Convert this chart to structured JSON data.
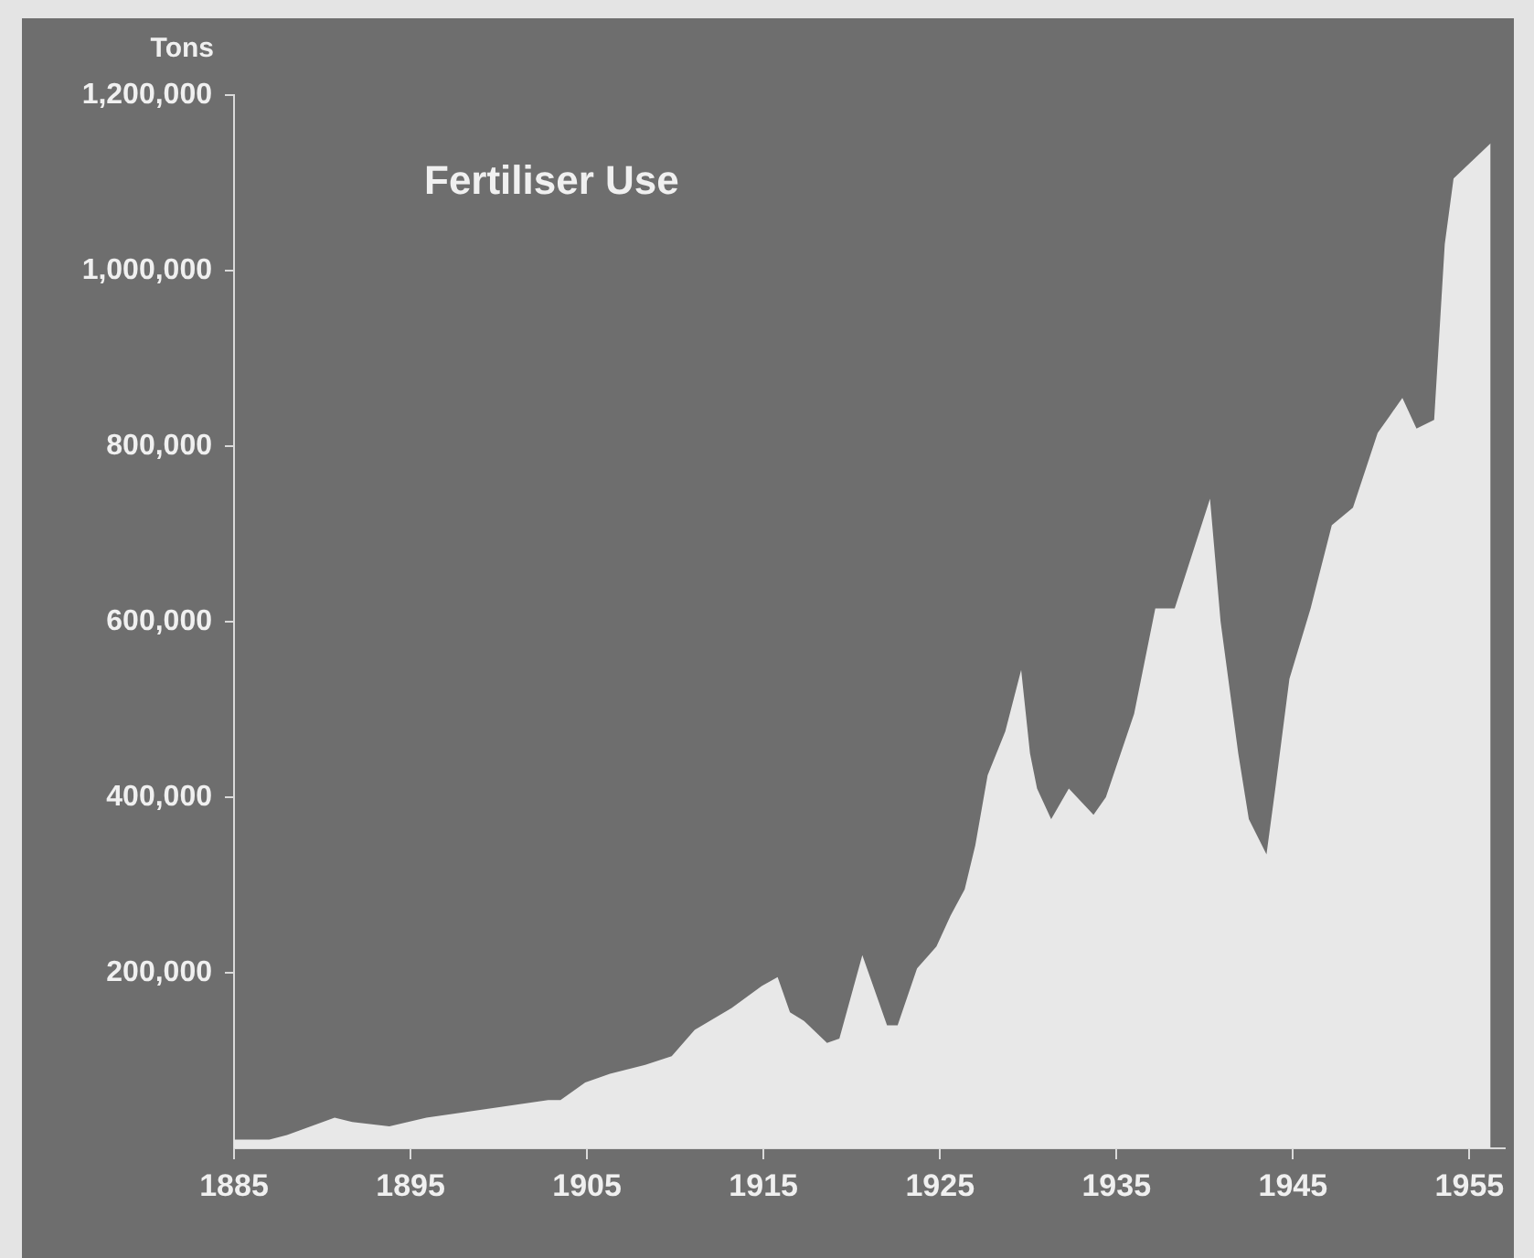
{
  "chart_data": {
    "type": "area",
    "title": "Fertiliser Use",
    "ylabel": "Tons",
    "x": [
      1885,
      1887,
      1888,
      1890.7,
      1891.7,
      1893.8,
      1895.9,
      1899.4,
      1902.8,
      1903.5,
      1904.9,
      1906.3,
      1908.3,
      1909.8,
      1911.1,
      1913.2,
      1914.9,
      1915.8,
      1916.5,
      1917.3,
      1918.6,
      1919.3,
      1920.6,
      1922,
      1922.6,
      1923.7,
      1924.8,
      1925.6,
      1926.4,
      1927,
      1927.7,
      1928.7,
      1929.6,
      1930.1,
      1930.5,
      1931.3,
      1932.3,
      1933.7,
      1934.4,
      1936,
      1937.2,
      1938.3,
      1940.3,
      1940.9,
      1941.9,
      1942.5,
      1943.5,
      1944,
      1944.8,
      1946,
      1947.2,
      1948.4,
      1949.8,
      1950.5,
      1951.2,
      1952,
      1953,
      1953.6,
      1954.1,
      1956.2
    ],
    "series": [
      {
        "color": "#e8e8e8",
        "values": [
          10000,
          10000,
          15000,
          35000,
          30000,
          25000,
          35000,
          45000,
          55000,
          55000,
          75000,
          85000,
          95000,
          105000,
          135000,
          160000,
          185000,
          195000,
          155000,
          145000,
          120000,
          125000,
          220000,
          140000,
          140000,
          205000,
          230000,
          265000,
          295000,
          345000,
          425000,
          475000,
          545000,
          450000,
          410000,
          375000,
          410000,
          380000,
          400000,
          495000,
          615000,
          615000,
          740000,
          600000,
          450000,
          375000,
          335000,
          410000,
          535000,
          615000,
          710000,
          730000,
          815000,
          835000,
          855000,
          820000,
          830000,
          1030000,
          1105000,
          1145000
        ]
      }
    ],
    "xlim": [
      1885,
      1957
    ],
    "xticks": [
      1885,
      1895,
      1905,
      1915,
      1925,
      1935,
      1945,
      1955
    ],
    "ylim": [
      0,
      1200000
    ],
    "yticks": [
      {
        "value": 200000,
        "label": "200,000"
      },
      {
        "value": 400000,
        "label": "400,000"
      },
      {
        "value": 600000,
        "label": "600,000"
      },
      {
        "value": 800000,
        "label": "800,000"
      },
      {
        "value": 1000000,
        "label": "1,000,000"
      },
      {
        "value": 1200000,
        "label": "1,200,000"
      }
    ]
  }
}
